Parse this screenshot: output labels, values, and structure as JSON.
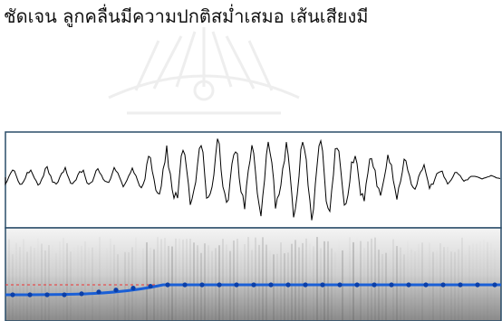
{
  "body_text": "ชัดเจน ลูกคลื่นมีความปกติสม่ำเสมอ เส้นเสียงมี"
}
